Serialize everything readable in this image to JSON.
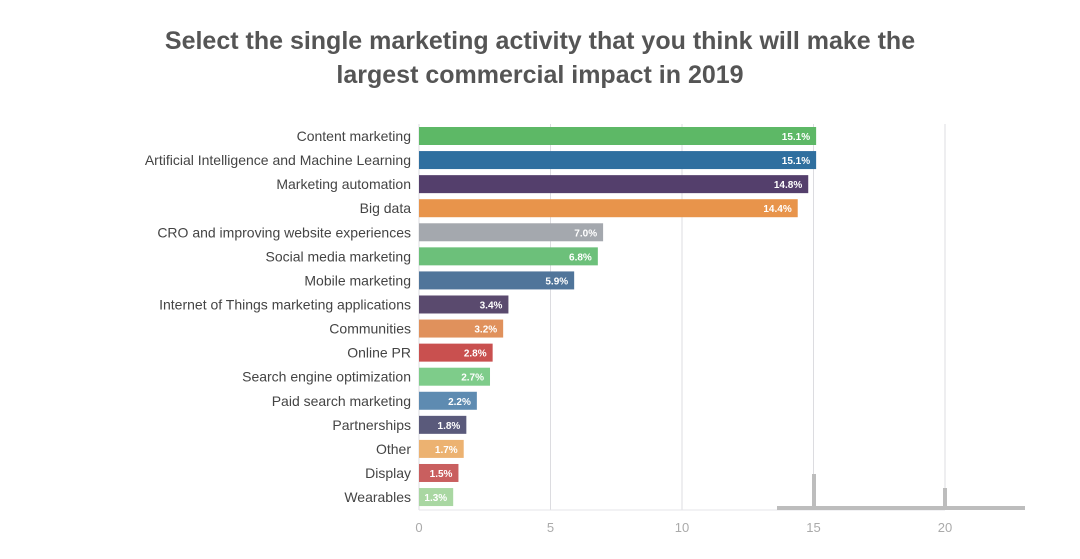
{
  "chart_data": {
    "type": "bar",
    "orientation": "horizontal",
    "title": "Select the single marketing activity that you think will make the largest commercial impact in 2019",
    "title_lines": [
      "Select the single marketing activity that you think will make the",
      "largest commercial impact in 2019"
    ],
    "categories": [
      "Content marketing",
      "Artificial Intelligence and Machine Learning",
      "Marketing automation",
      "Big data",
      "CRO and improving website experiences",
      "Social media marketing",
      "Mobile marketing",
      "Internet of Things marketing applications",
      "Communities",
      "Online PR",
      "Search engine optimization",
      "Paid search marketing",
      "Partnerships",
      "Other",
      "Display",
      "Wearables"
    ],
    "values": [
      15.1,
      15.1,
      14.8,
      14.4,
      7.0,
      6.8,
      5.9,
      3.4,
      3.2,
      2.8,
      2.7,
      2.2,
      1.8,
      1.7,
      1.5,
      1.3
    ],
    "value_labels": [
      "15.1%",
      "15.1%",
      "14.8%",
      "14.4%",
      "7.0%",
      "6.8%",
      "5.9%",
      "3.4%",
      "3.2%",
      "2.8%",
      "2.7%",
      "2.2%",
      "1.8%",
      "1.7%",
      "1.5%",
      "1.3%"
    ],
    "colors": [
      "#5db866",
      "#2f6f9f",
      "#543f6c",
      "#e8944b",
      "#a4a8ae",
      "#6cc07a",
      "#50759a",
      "#5a4a6e",
      "#e0915c",
      "#c9504f",
      "#7ecc8a",
      "#5e8bb1",
      "#5a5a7b",
      "#ecb271",
      "#c95f5f",
      "#a9d7a2"
    ],
    "xticks": [
      0,
      5,
      10,
      15,
      20
    ],
    "xtick_labels": [
      "0",
      "5",
      "10",
      "15",
      "20"
    ],
    "xlim": [
      0,
      20
    ],
    "xlabel": "",
    "ylabel": "",
    "grid": true
  }
}
